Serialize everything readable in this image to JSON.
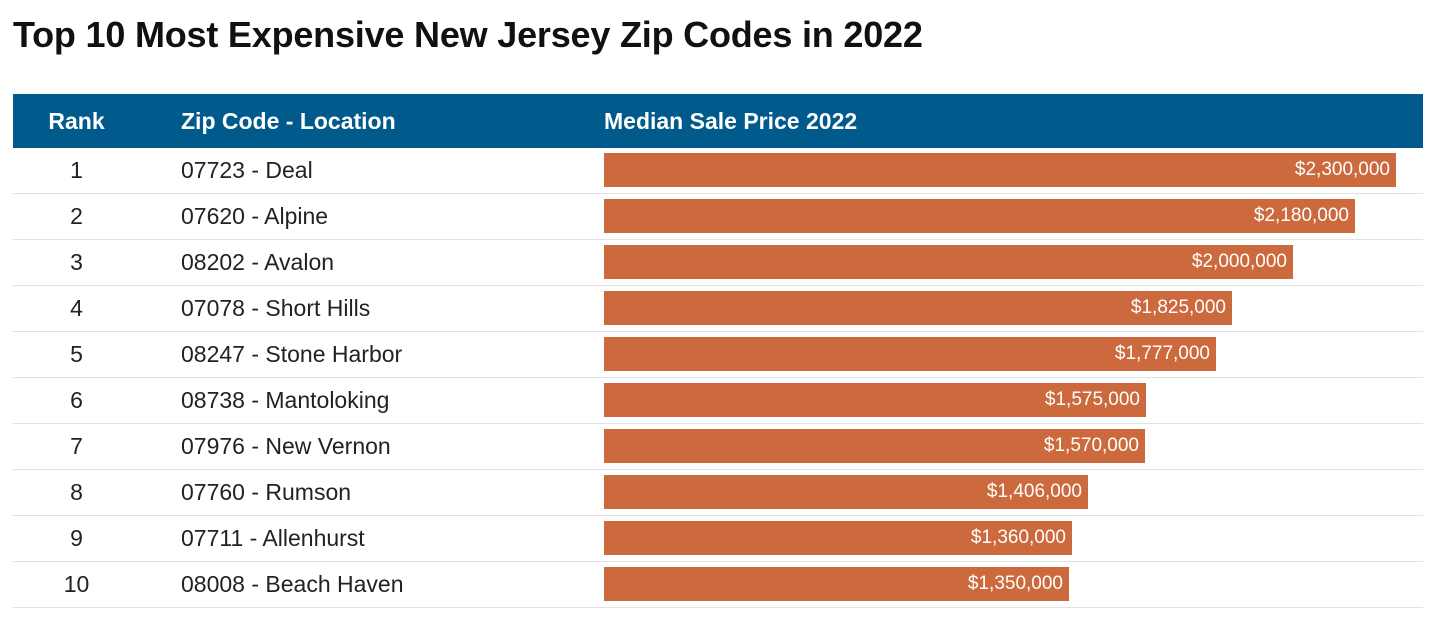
{
  "title": "Top 10 Most Expensive New Jersey Zip Codes in 2022",
  "header": {
    "rank": "Rank",
    "zip": "Zip Code - Location",
    "price": "Median Sale Price 2022"
  },
  "colors": {
    "header_bg": "#005b8c",
    "bar": "#cc6a3e"
  },
  "chart_data": {
    "type": "bar",
    "title": "Top 10 Most Expensive New Jersey Zip Codes in 2022",
    "xlabel": "",
    "ylabel": "Median Sale Price 2022",
    "xlim": [
      0,
      2300000
    ],
    "ranks": [
      "1",
      "2",
      "3",
      "4",
      "5",
      "6",
      "7",
      "8",
      "9",
      "10"
    ],
    "categories": [
      "07723 - Deal",
      "07620 - Alpine",
      "08202 - Avalon",
      "07078 - Short Hills",
      "08247 - Stone Harbor",
      "08738 - Mantoloking",
      "07976 - New Vernon",
      "07760 - Rumson",
      "07711 - Allenhurst",
      "08008 - Beach Haven"
    ],
    "values": [
      2300000,
      2180000,
      2000000,
      1825000,
      1777000,
      1575000,
      1570000,
      1406000,
      1360000,
      1350000
    ],
    "labels": [
      "$2,300,000",
      "$2,180,000",
      "$2,000,000",
      "$1,825,000",
      "$1,777,000",
      "$1,575,000",
      "$1,570,000",
      "$1,406,000",
      "$1,360,000",
      "$1,350,000"
    ]
  }
}
